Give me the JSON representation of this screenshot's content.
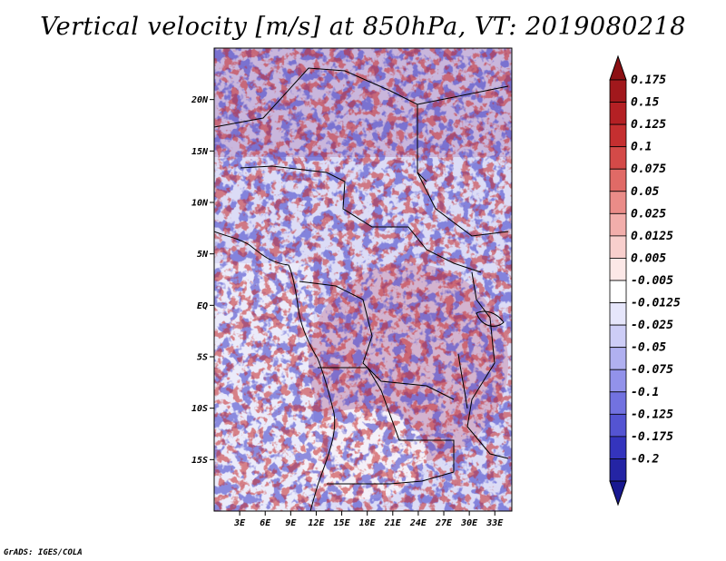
{
  "title": "Vertical velocity [m/s] at 850hPa, VT: 2019080218",
  "credit": "GrADS: IGES/COLA",
  "map": {
    "lon_range": [
      0,
      35
    ],
    "lat_range": [
      -20,
      25
    ],
    "lat_ticks": [
      {
        "value": 20,
        "label": "20N"
      },
      {
        "value": 15,
        "label": "15N"
      },
      {
        "value": 10,
        "label": "10N"
      },
      {
        "value": 5,
        "label": "5N"
      },
      {
        "value": 0,
        "label": "EQ"
      },
      {
        "value": -5,
        "label": "5S"
      },
      {
        "value": -10,
        "label": "10S"
      },
      {
        "value": -15,
        "label": "15S"
      }
    ],
    "lon_ticks": [
      {
        "value": 3,
        "label": "3E"
      },
      {
        "value": 6,
        "label": "6E"
      },
      {
        "value": 9,
        "label": "9E"
      },
      {
        "value": 12,
        "label": "12E"
      },
      {
        "value": 15,
        "label": "15E"
      },
      {
        "value": 18,
        "label": "18E"
      },
      {
        "value": 21,
        "label": "21E"
      },
      {
        "value": 24,
        "label": "24E"
      },
      {
        "value": 27,
        "label": "27E"
      },
      {
        "value": 30,
        "label": "30E"
      },
      {
        "value": 33,
        "label": "33E"
      }
    ]
  },
  "colorbar": {
    "levels": [
      {
        "label": "0.175",
        "color": "#a1181c"
      },
      {
        "label": "0.15",
        "color": "#b42024"
      },
      {
        "label": "0.125",
        "color": "#c52f30"
      },
      {
        "label": "0.1",
        "color": "#d44a48"
      },
      {
        "label": "0.075",
        "color": "#e06a66"
      },
      {
        "label": "0.05",
        "color": "#ea8c88"
      },
      {
        "label": "0.025",
        "color": "#f2aeab"
      },
      {
        "label": "0.0125",
        "color": "#f8cfcd"
      },
      {
        "label": "0.005",
        "color": "#fce8e7"
      },
      {
        "label": "-0.005",
        "color": "#ffffff"
      },
      {
        "label": "-0.0125",
        "color": "#e6e6fb"
      },
      {
        "label": "-0.025",
        "color": "#cdcdf6"
      },
      {
        "label": "-0.05",
        "color": "#b0b0f0"
      },
      {
        "label": "-0.075",
        "color": "#9292ea"
      },
      {
        "label": "-0.1",
        "color": "#7272e0"
      },
      {
        "label": "-0.125",
        "color": "#5454d2"
      },
      {
        "label": "-0.175",
        "color": "#3434bd"
      },
      {
        "label": "-0.2",
        "color": "#2424a4"
      }
    ],
    "top_arrow_color": "#8c1014",
    "bottom_arrow_color": "#181890"
  }
}
